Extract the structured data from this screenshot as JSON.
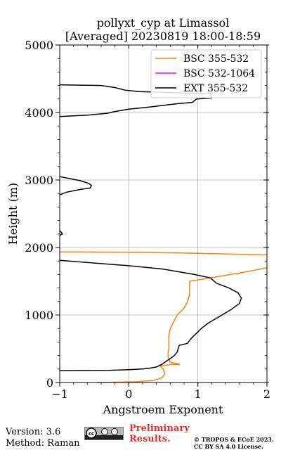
{
  "chart_data": {
    "type": "line",
    "title": "pollyxt_cyp at Limassol",
    "subtitle": "[Averaged] 20230819 18:00-18:59",
    "xlabel": "Angstroem Exponent",
    "ylabel": "Height (m)",
    "xlim": [
      -1,
      2
    ],
    "ylim": [
      0,
      5000
    ],
    "xticks": [
      "−1",
      "0",
      "1",
      "2"
    ],
    "yticks": [
      "0",
      "1000",
      "2000",
      "3000",
      "4000",
      "5000"
    ],
    "grid": true,
    "legend_position": "top-right",
    "series": [
      {
        "name": "BSC 355-532",
        "color": "#ff7f0e",
        "segments": [
          [
            [
              -0.46,
              0
            ],
            [
              0.1,
              10
            ],
            [
              0.35,
              30
            ],
            [
              0.48,
              70
            ],
            [
              0.52,
              130
            ],
            [
              0.5,
              200
            ],
            [
              0.45,
              250
            ],
            [
              0.55,
              255
            ],
            [
              0.62,
              270
            ],
            [
              0.74,
              265
            ],
            [
              0.7,
              280
            ],
            [
              0.6,
              300
            ],
            [
              0.57,
              380
            ],
            [
              0.57,
              450
            ],
            [
              0.58,
              500
            ],
            [
              0.58,
              700
            ],
            [
              0.6,
              800
            ],
            [
              0.65,
              900
            ],
            [
              0.7,
              1000
            ],
            [
              0.8,
              1100
            ],
            [
              0.85,
              1200
            ],
            [
              0.88,
              1300
            ],
            [
              0.88,
              1500
            ],
            [
              1.3,
              1570
            ],
            [
              1.7,
              1640
            ],
            [
              2.0,
              1700
            ]
          ],
          [
            [
              -1.0,
              1935
            ],
            [
              0.0,
              1930
            ],
            [
              1.0,
              1915
            ],
            [
              1.6,
              1900
            ],
            [
              2.0,
              1890
            ]
          ]
        ]
      },
      {
        "name": "BSC 532-1064",
        "color": "#ff00ff",
        "segments": []
      },
      {
        "name": "EXT 355-532",
        "color": "#000000",
        "segments": [
          [
            [
              -1.0,
              175
            ],
            [
              -0.3,
              180
            ],
            [
              0.0,
              190
            ],
            [
              0.2,
              200
            ],
            [
              0.32,
              215
            ],
            [
              0.4,
              230
            ],
            [
              0.48,
              270
            ],
            [
              0.55,
              320
            ],
            [
              0.65,
              390
            ],
            [
              0.7,
              450
            ],
            [
              0.73,
              550
            ],
            [
              0.85,
              580
            ],
            [
              0.9,
              650
            ],
            [
              0.97,
              720
            ],
            [
              1.05,
              800
            ],
            [
              1.15,
              880
            ],
            [
              1.3,
              970
            ],
            [
              1.48,
              1080
            ],
            [
              1.6,
              1170
            ],
            [
              1.63,
              1250
            ],
            [
              1.58,
              1330
            ],
            [
              1.45,
              1400
            ],
            [
              1.27,
              1470
            ],
            [
              1.18,
              1550
            ],
            [
              0.95,
              1600
            ],
            [
              0.5,
              1680
            ],
            [
              0.0,
              1730
            ],
            [
              -0.5,
              1770
            ],
            [
              -1.0,
              1810
            ]
          ],
          [
            [
              -1.0,
              2180
            ],
            [
              -0.96,
              2200
            ],
            [
              -0.98,
              2230
            ],
            [
              -1.0,
              2250
            ]
          ],
          [
            [
              -1.0,
              2780
            ],
            [
              -0.9,
              2820
            ],
            [
              -0.7,
              2860
            ],
            [
              -0.56,
              2880
            ],
            [
              -0.54,
              2920
            ],
            [
              -0.58,
              2950
            ],
            [
              -0.7,
              2990
            ],
            [
              -0.9,
              3030
            ],
            [
              -1.0,
              3050
            ]
          ],
          [
            [
              -1.0,
              3940
            ],
            [
              -0.6,
              3960
            ],
            [
              -0.3,
              3990
            ],
            [
              -0.22,
              4010
            ],
            [
              0.0,
              4050
            ],
            [
              0.3,
              4080
            ],
            [
              0.7,
              4130
            ],
            [
              0.92,
              4150
            ],
            [
              0.98,
              4200
            ],
            [
              1.2,
              4215
            ],
            [
              1.18,
              4290
            ],
            [
              1.0,
              4280
            ],
            [
              0.5,
              4300
            ],
            [
              0.15,
              4310
            ],
            [
              -0.05,
              4330
            ],
            [
              -0.2,
              4370
            ],
            [
              -0.4,
              4400
            ],
            [
              -0.7,
              4405
            ],
            [
              -1.0,
              4410
            ]
          ]
        ]
      }
    ]
  },
  "footer": {
    "version": "Version: 3.6",
    "method": "Method: Raman",
    "license_logo_text": "CC BY SA",
    "preliminary_line1": "Preliminary",
    "preliminary_line2": "Results.",
    "copyright_line1": "© TROPOS & ECoE 2023.",
    "copyright_line2": "CC BY SA 4.0 License."
  }
}
